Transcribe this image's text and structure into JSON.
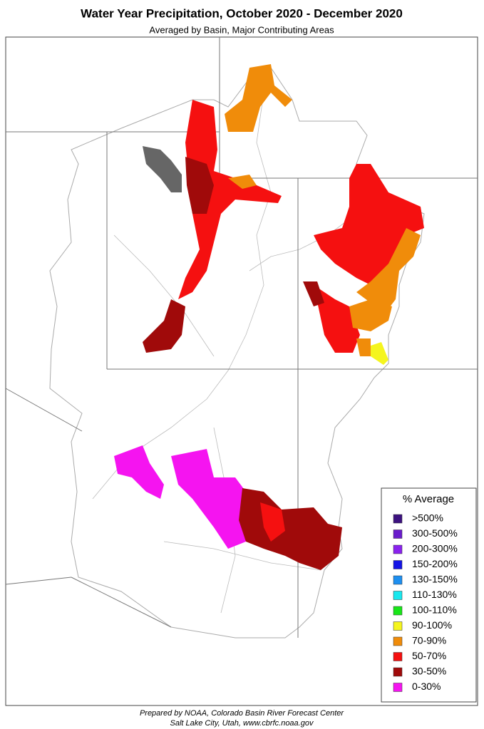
{
  "header": {
    "title": "Water Year Precipitation, October 2020 - December 2020",
    "subtitle": "Averaged by Basin, Major Contributing Areas"
  },
  "legend": {
    "title": "% Average",
    "items": [
      {
        "label": ">500%",
        "color": "#3c1280"
      },
      {
        "label": "300-500%",
        "color": "#6a1ccc"
      },
      {
        "label": "200-300%",
        "color": "#8a22ee"
      },
      {
        "label": "150-200%",
        "color": "#1414e6"
      },
      {
        "label": "130-150%",
        "color": "#1e8ff0"
      },
      {
        "label": "110-130%",
        "color": "#19e8ee"
      },
      {
        "label": "100-110%",
        "color": "#19e619"
      },
      {
        "label": "90-100%",
        "color": "#f5f51e"
      },
      {
        "label": "70-90%",
        "color": "#f08c0a"
      },
      {
        "label": "50-70%",
        "color": "#f51010"
      },
      {
        "label": "30-50%",
        "color": "#a00a0a"
      },
      {
        "label": "0-30%",
        "color": "#f514f0"
      }
    ]
  },
  "footer": {
    "lines": [
      "Prepared by NOAA, Colorado Basin River Forecast Center",
      "Salt Lake City, Utah, www.cbrfc.noaa.gov"
    ]
  }
}
